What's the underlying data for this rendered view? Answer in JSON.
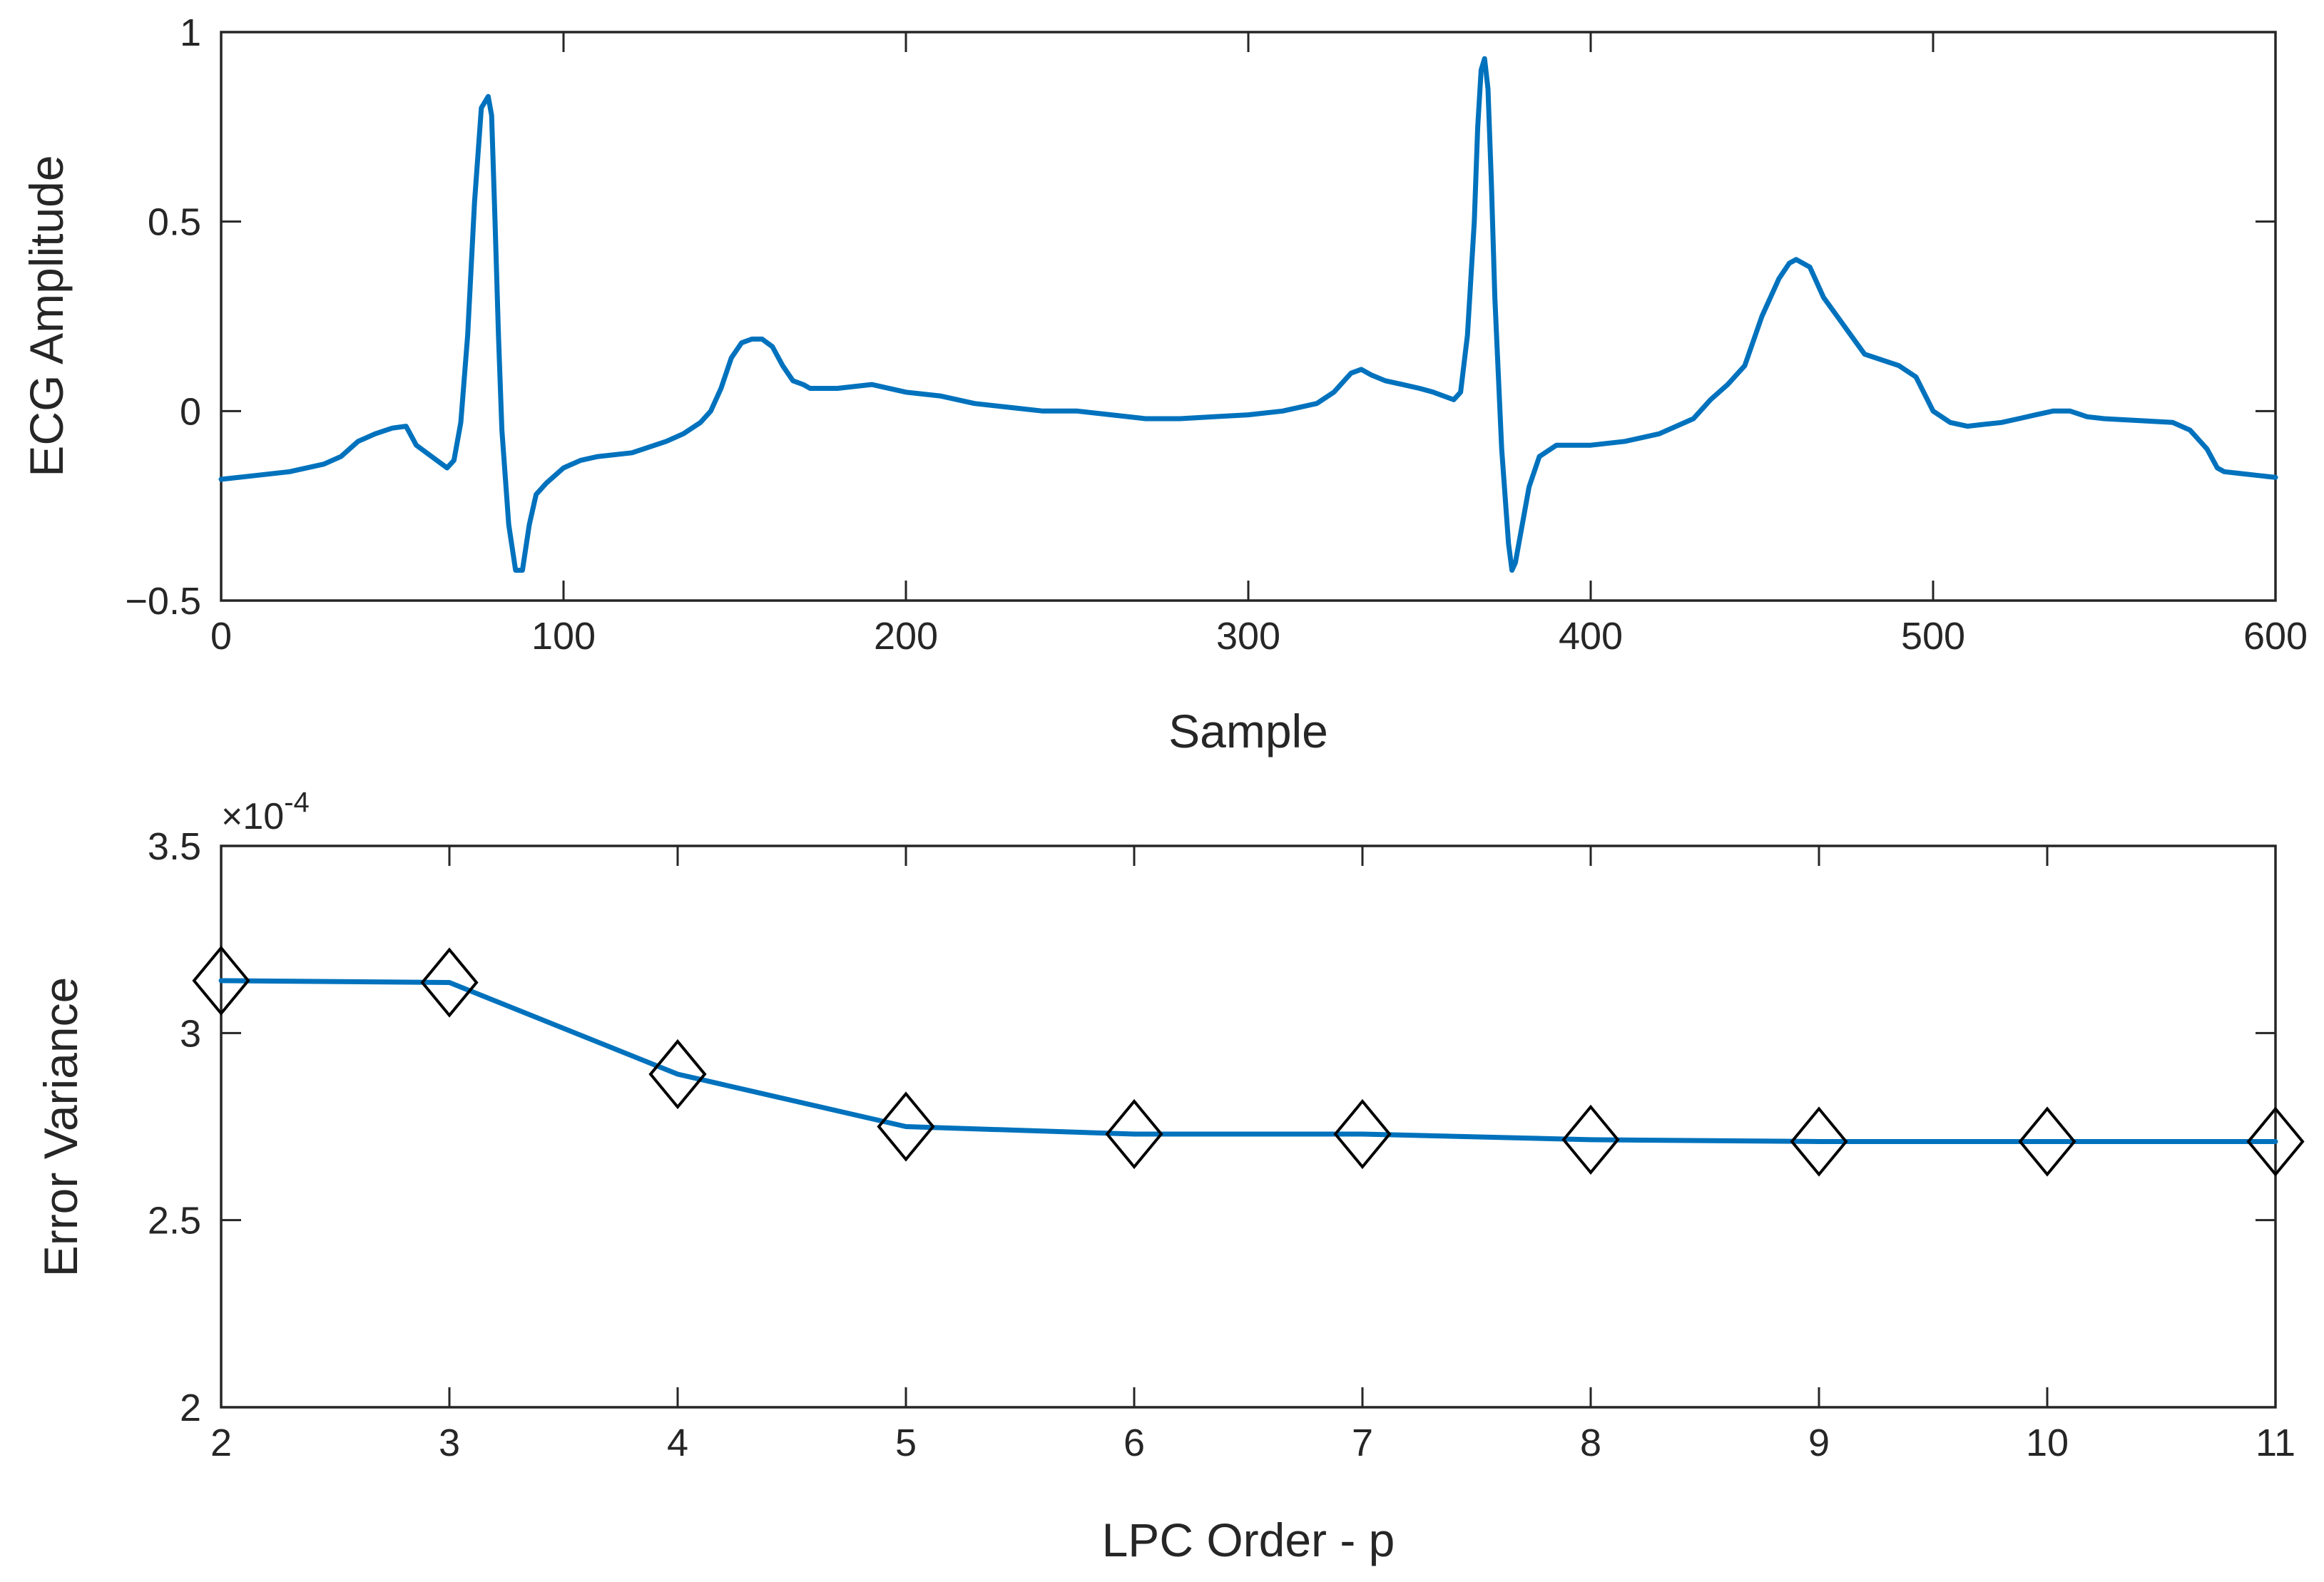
{
  "chart_data": [
    {
      "type": "line",
      "xlabel": "Sample",
      "ylabel": "ECG Amplitude",
      "xlim": [
        0,
        600
      ],
      "ylim": [
        -0.5,
        1
      ],
      "xticks": [
        0,
        100,
        200,
        300,
        400,
        500,
        600
      ],
      "xtick_labels": [
        "0",
        "100",
        "200",
        "300",
        "400",
        "500",
        "600"
      ],
      "yticks": [
        -0.5,
        0,
        0.5,
        1
      ],
      "ytick_labels": [
        "−0.5",
        "0",
        "0.5",
        "1"
      ],
      "grid": false,
      "color": "#0072BD",
      "series": [
        {
          "x": [
            0,
            10,
            20,
            30,
            35,
            40,
            45,
            50,
            54,
            57,
            60,
            63,
            66,
            68,
            70,
            72,
            74,
            76,
            78,
            79,
            80,
            81,
            82,
            84,
            86,
            88,
            90,
            92,
            95,
            100,
            105,
            110,
            120,
            130,
            135,
            140,
            143,
            146,
            149,
            152,
            155,
            158,
            161,
            164,
            167,
            170,
            172,
            175,
            180,
            190,
            200,
            210,
            220,
            230,
            240,
            250,
            260,
            270,
            280,
            290,
            300,
            310,
            320,
            325,
            328,
            330,
            333,
            336,
            340,
            345,
            350,
            354,
            357,
            360,
            362,
            364,
            366,
            367,
            368,
            369,
            370,
            371,
            372,
            374,
            376,
            377,
            378,
            380,
            382,
            385,
            390,
            400,
            410,
            420,
            430,
            435,
            440,
            445,
            450,
            455,
            458,
            460,
            464,
            468,
            472,
            476,
            480,
            490,
            495,
            500,
            505,
            510,
            515,
            520,
            525,
            530,
            535,
            540,
            545,
            550,
            560,
            570,
            575,
            578,
            580,
            583,
            585,
            590,
            595,
            600
          ],
          "y": [
            -0.18,
            -0.17,
            -0.16,
            -0.14,
            -0.12,
            -0.08,
            -0.06,
            -0.045,
            -0.04,
            -0.09,
            -0.11,
            -0.13,
            -0.15,
            -0.13,
            -0.03,
            0.2,
            0.55,
            0.8,
            0.83,
            0.78,
            0.5,
            0.2,
            -0.05,
            -0.3,
            -0.42,
            -0.42,
            -0.3,
            -0.22,
            -0.19,
            -0.15,
            -0.13,
            -0.12,
            -0.11,
            -0.08,
            -0.06,
            -0.03,
            0.0,
            0.06,
            0.14,
            0.18,
            0.19,
            0.19,
            0.17,
            0.12,
            0.08,
            0.07,
            0.06,
            0.06,
            0.06,
            0.07,
            0.05,
            0.04,
            0.02,
            0.01,
            0.0,
            0.0,
            -0.01,
            -0.02,
            -0.02,
            -0.015,
            -0.01,
            0.0,
            0.02,
            0.05,
            0.08,
            0.1,
            0.11,
            0.095,
            0.08,
            0.07,
            0.06,
            0.05,
            0.04,
            0.03,
            0.05,
            0.2,
            0.5,
            0.75,
            0.9,
            0.93,
            0.85,
            0.6,
            0.3,
            -0.1,
            -0.35,
            -0.42,
            -0.4,
            -0.3,
            -0.2,
            -0.12,
            -0.09,
            -0.09,
            -0.08,
            -0.06,
            -0.02,
            0.03,
            0.07,
            0.12,
            0.25,
            0.35,
            0.39,
            0.4,
            0.38,
            0.3,
            0.25,
            0.2,
            0.15,
            0.12,
            0.09,
            0.0,
            -0.03,
            -0.04,
            -0.035,
            -0.03,
            -0.02,
            -0.01,
            0.0,
            0.0,
            -0.015,
            -0.02,
            -0.025,
            -0.03,
            -0.05,
            -0.08,
            -0.1,
            -0.15,
            -0.16,
            -0.165,
            -0.17,
            -0.175
          ]
        }
      ]
    },
    {
      "type": "line",
      "xlabel": "LPC Order - p",
      "ylabel": "Error Variance",
      "exponent_label": "×10",
      "exponent_power": "-4",
      "xlim": [
        2,
        11
      ],
      "ylim": [
        2,
        3.5
      ],
      "xticks": [
        2,
        3,
        4,
        5,
        6,
        7,
        8,
        9,
        10,
        11
      ],
      "xtick_labels": [
        "2",
        "3",
        "4",
        "5",
        "6",
        "7",
        "8",
        "9",
        "10",
        "11"
      ],
      "yticks": [
        2,
        2.5,
        3,
        3.5
      ],
      "ytick_labels": [
        "2",
        "2.5",
        "3",
        "3.5"
      ],
      "grid": false,
      "color": "#0072BD",
      "marker": "diamond",
      "marker_color": "#000000",
      "series": [
        {
          "x": [
            2,
            3,
            4,
            5,
            6,
            7,
            8,
            9,
            10,
            11
          ],
          "y": [
            3.14,
            3.135,
            2.89,
            2.75,
            2.73,
            2.73,
            2.715,
            2.71,
            2.71,
            2.71
          ]
        }
      ]
    }
  ]
}
